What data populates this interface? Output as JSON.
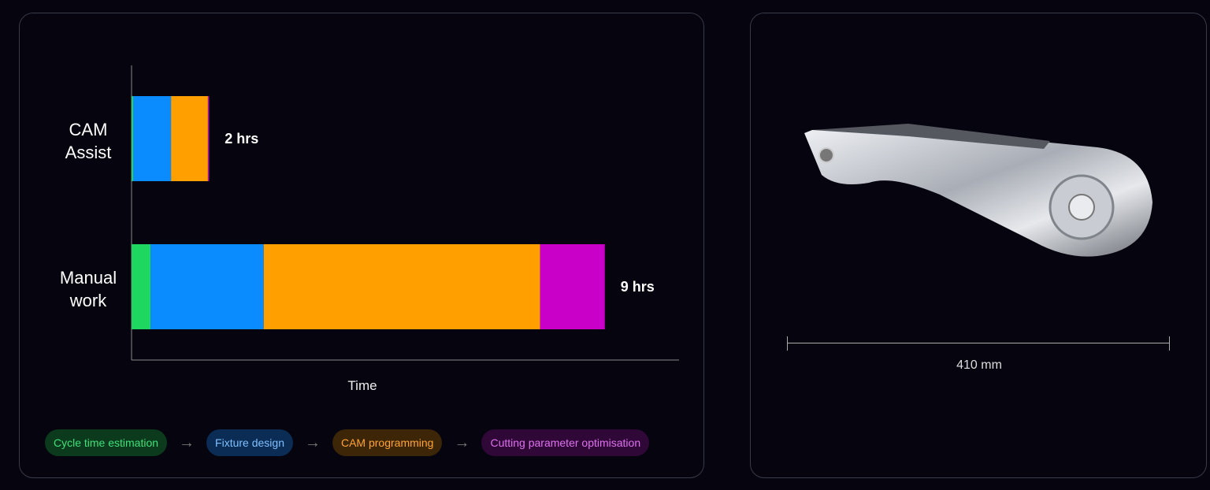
{
  "chart_data": {
    "type": "bar",
    "orientation": "horizontal",
    "stacked": true,
    "categories": [
      "CAM Assist",
      "Manual work"
    ],
    "category_labels": [
      [
        "CAM",
        "Assist"
      ],
      [
        "Manual",
        "work"
      ]
    ],
    "series": [
      {
        "name": "Cycle time estimation",
        "color": "#1ed760",
        "values": [
          0.03,
          0.36
        ]
      },
      {
        "name": "Fixture design",
        "color": "#0a8cff",
        "values": [
          0.72,
          2.15
        ]
      },
      {
        "name": "CAM programming",
        "color": "#ff9f00",
        "values": [
          0.7,
          5.25
        ]
      },
      {
        "name": "Cutting parameter optimisation",
        "color": "#c800c8",
        "values": [
          0.02,
          1.23
        ]
      }
    ],
    "data_labels": [
      "2 hrs",
      "9 hrs"
    ],
    "xlabel": "Time",
    "xlim": [
      0,
      10.4
    ],
    "grid": false,
    "legend": "bottom"
  },
  "legend": {
    "pills": [
      {
        "label": "Cycle time estimation",
        "bg": "#0c3a1c",
        "fg": "#3ee07a"
      },
      {
        "label": "Fixture design",
        "bg": "#0b2d55",
        "fg": "#7fbfff"
      },
      {
        "label": "CAM programming",
        "bg": "#3d2508",
        "fg": "#ffa430"
      },
      {
        "label": "Cutting parameter optimisation",
        "bg": "#2f0838",
        "fg": "#e070f0"
      }
    ],
    "arrow": "→"
  },
  "part": {
    "image": "machined-aluminium-arm",
    "dimension": "410 mm"
  }
}
